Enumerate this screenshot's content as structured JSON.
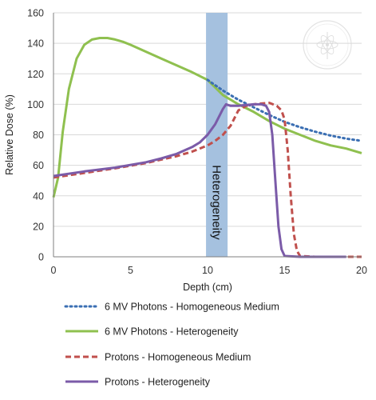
{
  "chart_data": {
    "type": "line",
    "xlabel": "Depth (cm)",
    "ylabel": "Relative Dose (%)",
    "xlim": [
      0,
      20
    ],
    "ylim": [
      0,
      160
    ],
    "x_ticks": [
      "0",
      "5",
      "10",
      "15",
      "20"
    ],
    "y_ticks": [
      "0",
      "20",
      "40",
      "60",
      "80",
      "100",
      "120",
      "140",
      "160"
    ],
    "grid": "horizontal",
    "legend_position": "bottom",
    "annotation": {
      "label": "Heterogeneity",
      "x_range": [
        9.9,
        11.3
      ],
      "color": "#a5c1df"
    },
    "series": [
      {
        "name": "6 MV Photons - Homogeneous Medium",
        "color": "#3b6fb3",
        "style": "dotted",
        "x": [
          10,
          11,
          12,
          13,
          14,
          15,
          16,
          17,
          18,
          19,
          20
        ],
        "y": [
          116,
          109,
          103,
          98,
          93,
          88.5,
          85,
          82,
          79.5,
          77.5,
          76
        ]
      },
      {
        "name": "6 MV Photons - Heterogeneity",
        "color": "#8fc04f",
        "style": "solid",
        "x": [
          0,
          0.3,
          0.6,
          1.0,
          1.5,
          2.0,
          2.5,
          3.0,
          3.5,
          4.0,
          4.5,
          5,
          6,
          7,
          8,
          9,
          10,
          11,
          12,
          13,
          14,
          15,
          16,
          17,
          18,
          19,
          20
        ],
        "y": [
          39,
          52,
          82,
          110,
          130,
          139,
          142.5,
          143.5,
          143.5,
          142.5,
          141,
          139,
          134.5,
          130,
          125.5,
          121,
          116,
          106,
          100,
          95,
          89,
          84,
          80,
          76,
          73,
          71,
          68
        ]
      },
      {
        "name": "Protons - Homogeneous Medium",
        "color": "#c0504d",
        "style": "dashed",
        "x": [
          0,
          2,
          4,
          6,
          8,
          9,
          10,
          10.5,
          11,
          11.5,
          12,
          12.5,
          13,
          13.5,
          14,
          14.5,
          14.8,
          15,
          15.2,
          15.4,
          15.6,
          15.8,
          16,
          17,
          18,
          19,
          20
        ],
        "y": [
          52,
          55,
          58,
          61.5,
          66,
          69,
          73,
          76,
          80,
          86,
          96,
          99,
          100,
          100.5,
          101,
          99,
          96,
          90,
          70,
          40,
          15,
          4,
          0.5,
          0,
          0,
          0,
          0
        ]
      },
      {
        "name": "Protons - Heterogeneity",
        "color": "#7b5ba8",
        "style": "solid",
        "x": [
          0,
          2,
          4,
          6,
          7,
          8,
          9,
          9.5,
          10,
          10.5,
          11,
          11.2,
          11.5,
          12,
          12.5,
          13,
          13.5,
          13.8,
          14,
          14.2,
          14.4,
          14.6,
          14.8,
          15,
          16,
          17,
          18,
          19
        ],
        "y": [
          53,
          56,
          58.5,
          62,
          64.5,
          67.5,
          72,
          75,
          80,
          87,
          97,
          100,
          99,
          99,
          99.5,
          100,
          100,
          99,
          95,
          80,
          50,
          20,
          5,
          0.5,
          0,
          0,
          0,
          0
        ]
      }
    ]
  }
}
